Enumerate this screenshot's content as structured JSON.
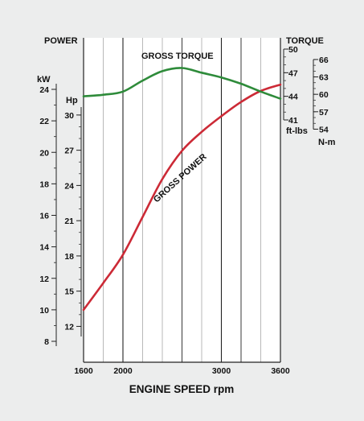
{
  "chart_data": {
    "type": "line",
    "xlabel": "ENGINE SPEED rpm",
    "x_ticks": [
      1600,
      2000,
      3000,
      3600
    ],
    "x_range": [
      1600,
      3600
    ],
    "axes": {
      "power_label": "POWER",
      "kw_label": "kW",
      "hp_label": "Hp",
      "torque_label": "TORQUE",
      "ftlbs_label": "ft-lbs",
      "nm_label": "N-m"
    },
    "kw_ticks": [
      8,
      10,
      12,
      14,
      16,
      18,
      20,
      22,
      24
    ],
    "kw_range": [
      8,
      24
    ],
    "hp_ticks": [
      12,
      15,
      18,
      21,
      24,
      27,
      30
    ],
    "ftlbs_ticks": [
      41,
      44,
      47,
      50
    ],
    "ftlbs_range": [
      41,
      50
    ],
    "nm_ticks": [
      54,
      57,
      60,
      63,
      66
    ],
    "series": [
      {
        "name": "GROSS POWER",
        "unit": "kW",
        "color": "#cc2a36",
        "x": [
          1600,
          1800,
          2000,
          2200,
          2400,
          2600,
          2800,
          3000,
          3200,
          3400,
          3600
        ],
        "y": [
          10.0,
          11.7,
          13.5,
          15.9,
          18.3,
          20.1,
          21.3,
          22.3,
          23.2,
          23.9,
          24.3
        ]
      },
      {
        "name": "GROSS TORQUE",
        "unit": "ft-lbs",
        "color": "#2e8b3a",
        "x": [
          1600,
          1800,
          2000,
          2200,
          2400,
          2600,
          2800,
          3000,
          3200,
          3400,
          3600
        ],
        "y": [
          44.0,
          44.2,
          44.6,
          46.0,
          47.2,
          47.6,
          47.0,
          46.4,
          45.6,
          44.6,
          43.7
        ]
      }
    ]
  }
}
